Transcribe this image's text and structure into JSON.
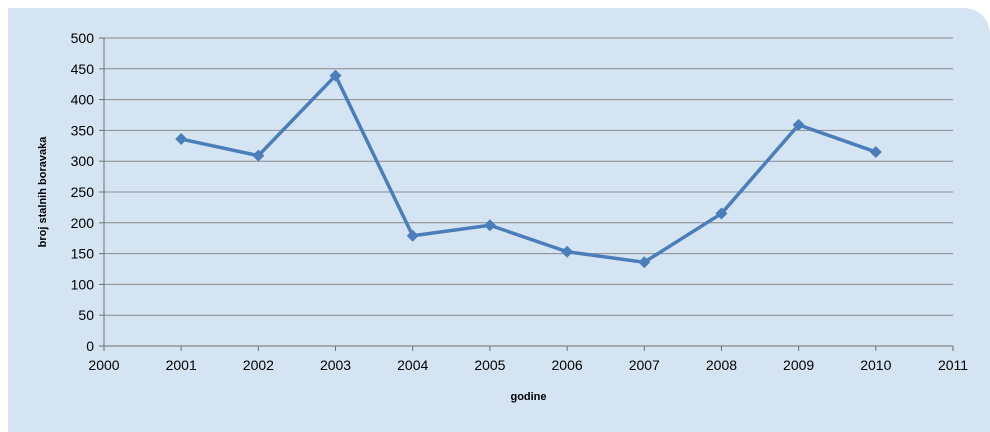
{
  "chart_data": {
    "type": "scatter",
    "title": "",
    "xlabel": "godine",
    "ylabel": "broj stalnih boravaka",
    "xlim": [
      2000,
      2011
    ],
    "ylim": [
      0,
      500
    ],
    "x_ticks": [
      2000,
      2001,
      2002,
      2003,
      2004,
      2005,
      2006,
      2007,
      2008,
      2009,
      2010,
      2011
    ],
    "y_ticks": [
      0,
      50,
      100,
      150,
      200,
      250,
      300,
      350,
      400,
      450,
      500
    ],
    "grid": "horizontal",
    "legend": "none",
    "series": [
      {
        "x": [
          2001,
          2002,
          2003,
          2004,
          2005,
          2006,
          2007,
          2008,
          2009,
          2010
        ],
        "y": [
          336,
          309,
          439,
          179,
          196,
          153,
          136,
          215,
          359,
          315
        ],
        "marker": "diamond",
        "line": "straight",
        "color": "#4a7ebb"
      }
    ]
  }
}
